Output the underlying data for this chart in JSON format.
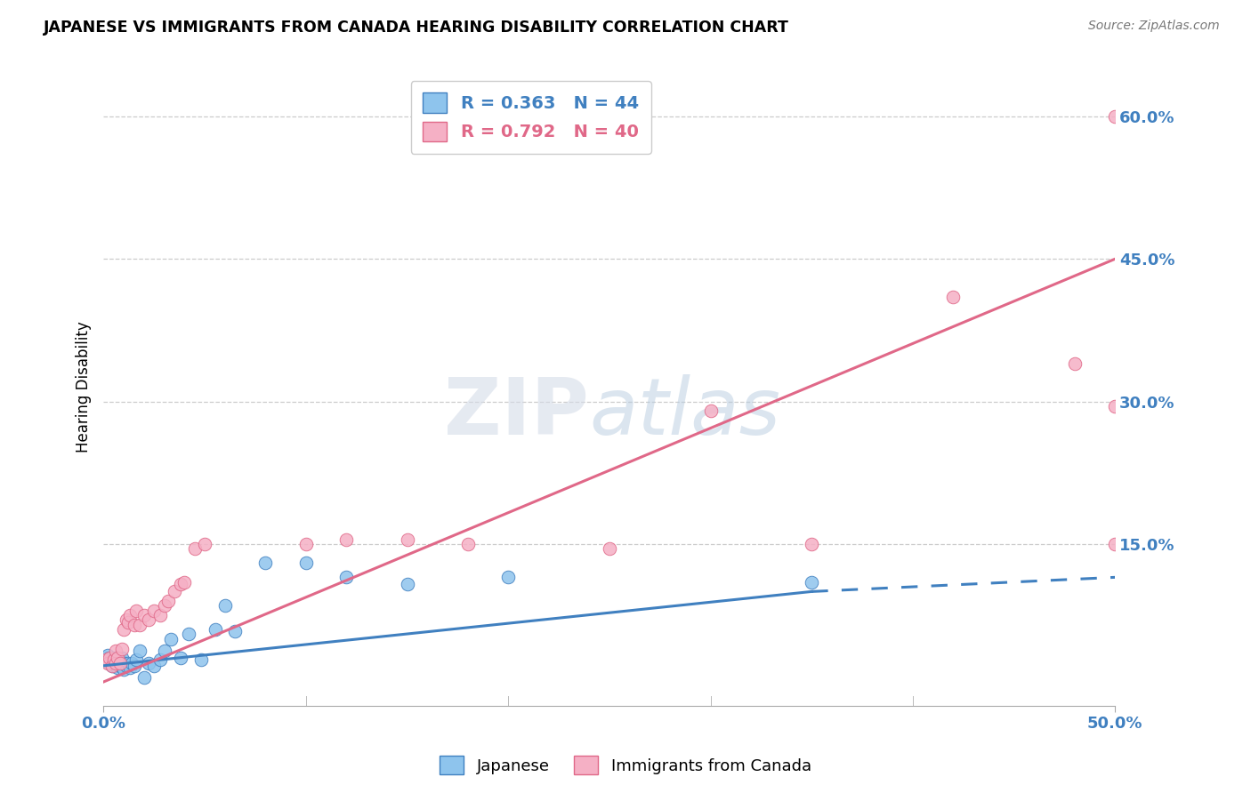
{
  "title": "JAPANESE VS IMMIGRANTS FROM CANADA HEARING DISABILITY CORRELATION CHART",
  "source": "Source: ZipAtlas.com",
  "ylabel": "Hearing Disability",
  "xlim": [
    0.0,
    0.5
  ],
  "ylim": [
    -0.02,
    0.65
  ],
  "color_blue": "#8EC4ED",
  "color_pink": "#F5B0C5",
  "line_color_blue": "#4080C0",
  "line_color_pink": "#E06888",
  "legend_label1": "R = 0.363   N = 44",
  "legend_label2": "R = 0.792   N = 40",
  "legend_series1": "Japanese",
  "legend_series2": "Immigrants from Canada",
  "watermark_text": "ZIPatlas",
  "japanese_x": [
    0.001,
    0.002,
    0.002,
    0.003,
    0.003,
    0.004,
    0.004,
    0.005,
    0.005,
    0.006,
    0.006,
    0.007,
    0.007,
    0.008,
    0.008,
    0.009,
    0.009,
    0.01,
    0.01,
    0.011,
    0.012,
    0.013,
    0.014,
    0.015,
    0.016,
    0.018,
    0.02,
    0.022,
    0.025,
    0.028,
    0.03,
    0.033,
    0.038,
    0.042,
    0.048,
    0.055,
    0.06,
    0.065,
    0.08,
    0.1,
    0.12,
    0.15,
    0.2,
    0.35
  ],
  "japanese_y": [
    0.03,
    0.028,
    0.033,
    0.025,
    0.03,
    0.022,
    0.028,
    0.025,
    0.03,
    0.022,
    0.028,
    0.02,
    0.025,
    0.022,
    0.028,
    0.025,
    0.03,
    0.018,
    0.025,
    0.022,
    0.025,
    0.02,
    0.025,
    0.022,
    0.028,
    0.038,
    0.01,
    0.025,
    0.022,
    0.028,
    0.038,
    0.05,
    0.03,
    0.055,
    0.028,
    0.06,
    0.085,
    0.058,
    0.13,
    0.13,
    0.115,
    0.108,
    0.115,
    0.11
  ],
  "canada_x": [
    0.001,
    0.002,
    0.003,
    0.004,
    0.005,
    0.006,
    0.006,
    0.007,
    0.008,
    0.009,
    0.01,
    0.011,
    0.012,
    0.013,
    0.015,
    0.016,
    0.018,
    0.02,
    0.022,
    0.025,
    0.028,
    0.03,
    0.032,
    0.035,
    0.038,
    0.04,
    0.045,
    0.05,
    0.1,
    0.12,
    0.15,
    0.18,
    0.25,
    0.3,
    0.35,
    0.42,
    0.48,
    0.5,
    0.5,
    0.5
  ],
  "canada_y": [
    0.028,
    0.025,
    0.03,
    0.022,
    0.028,
    0.025,
    0.038,
    0.03,
    0.025,
    0.04,
    0.06,
    0.07,
    0.068,
    0.075,
    0.065,
    0.08,
    0.065,
    0.075,
    0.07,
    0.08,
    0.075,
    0.085,
    0.09,
    0.1,
    0.108,
    0.11,
    0.145,
    0.15,
    0.15,
    0.155,
    0.155,
    0.15,
    0.145,
    0.29,
    0.15,
    0.41,
    0.34,
    0.295,
    0.6,
    0.15
  ],
  "line_blue_x0": 0.0,
  "line_blue_y0": 0.022,
  "line_blue_x1": 0.35,
  "line_blue_y1": 0.1,
  "line_blue_x2": 0.5,
  "line_blue_y2": 0.115,
  "line_pink_x0": 0.0,
  "line_pink_y0": 0.005,
  "line_pink_x1": 0.5,
  "line_pink_y1": 0.45
}
